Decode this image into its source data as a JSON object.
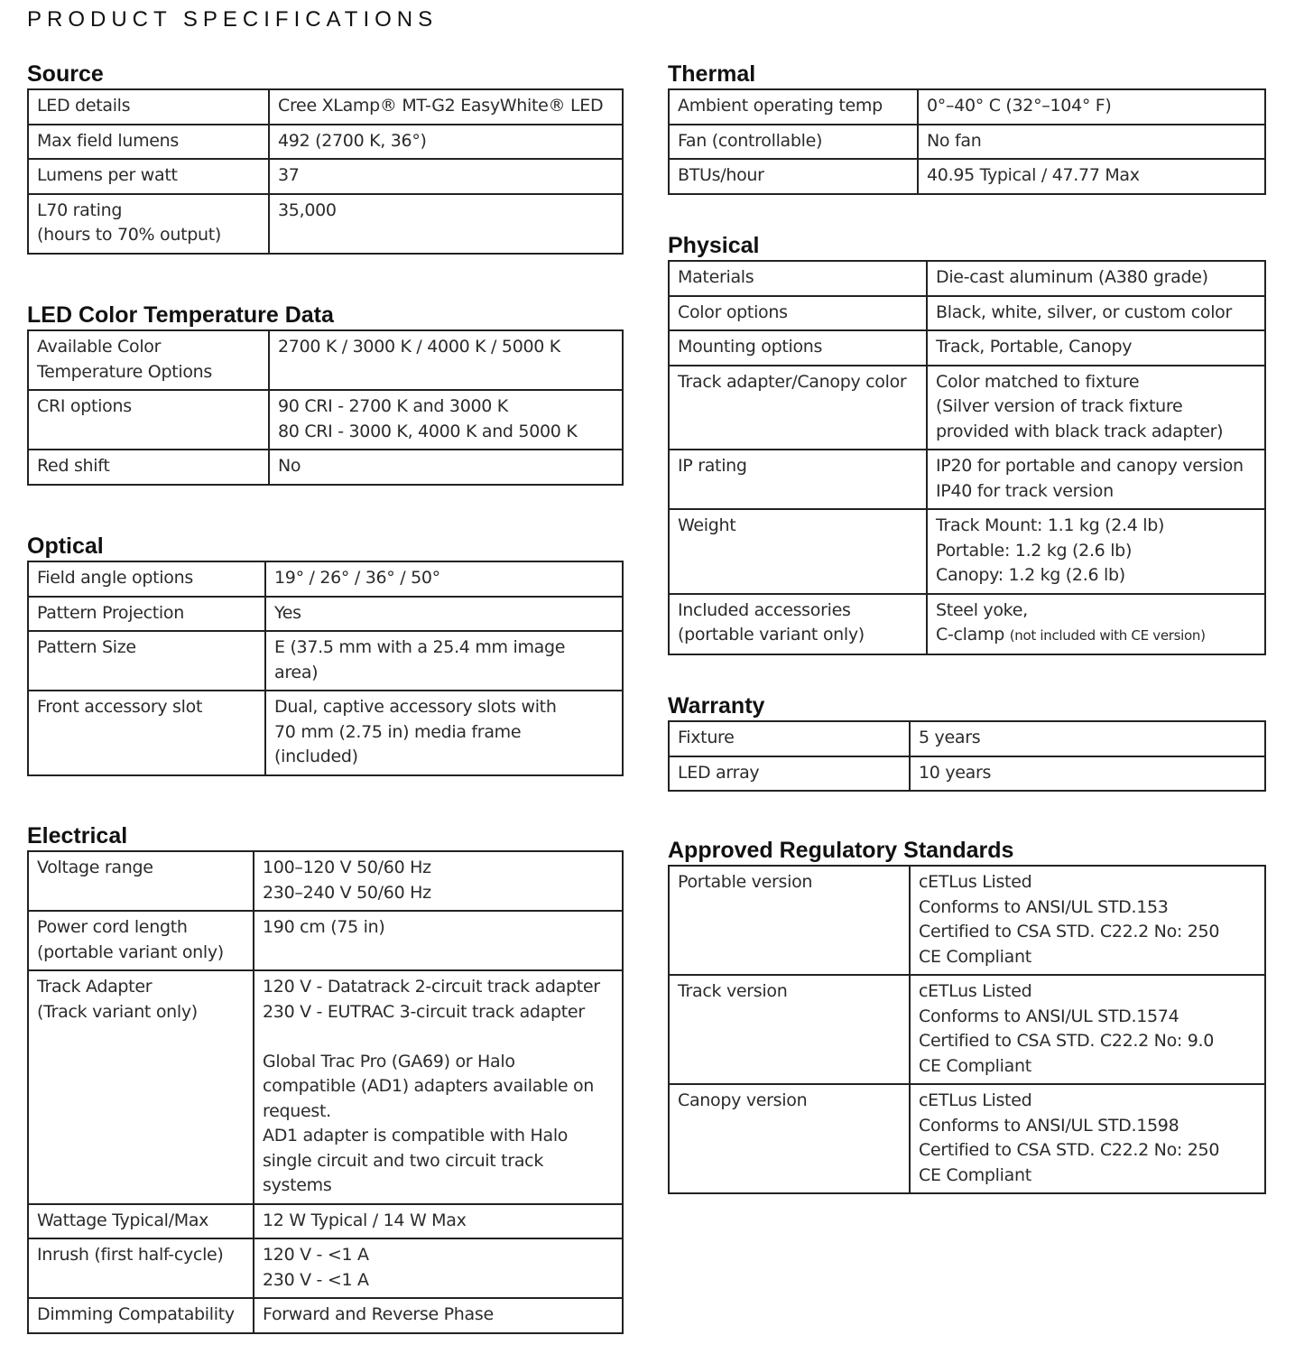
{
  "title": "PRODUCT SPECIFICATIONS",
  "sections": [
    {
      "id": "source",
      "heading": "Source",
      "rows": [
        {
          "label": [
            "LED details"
          ],
          "value": [
            "Cree XLamp® MT-G2 EasyWhite® LED"
          ]
        },
        {
          "label": [
            "Max field lumens"
          ],
          "value": [
            "492 (2700 K, 36°)"
          ]
        },
        {
          "label": [
            "Lumens per watt"
          ],
          "value": [
            "37"
          ]
        },
        {
          "label": [
            "L70 rating",
            "(hours to 70% output)"
          ],
          "value": [
            "35,000"
          ]
        }
      ]
    },
    {
      "id": "led-color-temperature",
      "heading": "LED Color Temperature Data",
      "rows": [
        {
          "label": [
            "Available Color",
            "Temperature Options"
          ],
          "value": [
            "2700 K / 3000 K / 4000 K / 5000 K"
          ]
        },
        {
          "label": [
            "CRI options"
          ],
          "value": [
            "90 CRI - 2700 K and 3000 K",
            "80 CRI - 3000 K, 4000 K and 5000 K"
          ]
        },
        {
          "label": [
            "Red shift"
          ],
          "value": [
            "No"
          ]
        }
      ]
    },
    {
      "id": "optical",
      "heading": "Optical",
      "rows": [
        {
          "label": [
            "Field angle options"
          ],
          "value": [
            "19° / 26° / 36° / 50°"
          ]
        },
        {
          "label": [
            "Pattern Projection"
          ],
          "value": [
            "Yes"
          ]
        },
        {
          "label": [
            "Pattern Size"
          ],
          "value": [
            "E (37.5 mm with a 25.4 mm image",
            "area)"
          ]
        },
        {
          "label": [
            "Front accessory slot"
          ],
          "value": [
            "Dual, captive accessory slots with",
            "70 mm (2.75 in) media frame",
            "(included)"
          ]
        }
      ]
    },
    {
      "id": "electrical",
      "heading": "Electrical",
      "rows": [
        {
          "label": [
            "Voltage range"
          ],
          "value": [
            "100–120 V 50/60 Hz",
            "230–240 V 50/60 Hz"
          ]
        },
        {
          "label": [
            "Power cord length",
            "(portable variant only)"
          ],
          "value": [
            "190 cm (75 in)"
          ]
        },
        {
          "label": [
            "Track Adapter",
            "(Track variant only)"
          ],
          "value": [
            "120 V - Datatrack 2-circuit track adapter",
            "230 V - EUTRAC 3-circuit track adapter",
            "",
            "Global Trac Pro (GA69) or Halo",
            "compatible (AD1) adapters available on",
            "request.",
            "AD1 adapter is compatible with Halo",
            "single circuit and two circuit track",
            "systems"
          ]
        },
        {
          "label": [
            "Wattage Typical/Max"
          ],
          "value": [
            "12 W Typical / 14 W Max"
          ]
        },
        {
          "label": [
            "Inrush (first half-cycle)"
          ],
          "value": [
            "120 V - <1 A",
            "230 V - <1 A"
          ]
        },
        {
          "label": [
            "Dimming Compatability"
          ],
          "value": [
            "Forward and Reverse Phase"
          ]
        }
      ]
    },
    {
      "id": "thermal",
      "heading": "Thermal",
      "rows": [
        {
          "label": [
            "Ambient operating temp"
          ],
          "value": [
            "0°–40° C (32°–104° F)"
          ]
        },
        {
          "label": [
            "Fan (controllable)"
          ],
          "value": [
            "No fan"
          ]
        },
        {
          "label": [
            "BTUs/hour"
          ],
          "value": [
            "40.95 Typical / 47.77 Max"
          ]
        }
      ]
    },
    {
      "id": "physical",
      "heading": "Physical",
      "rows": [
        {
          "label": [
            "Materials"
          ],
          "value": [
            "Die-cast aluminum (A380 grade)"
          ]
        },
        {
          "label": [
            "Color options"
          ],
          "value": [
            "Black, white, silver, or custom color"
          ]
        },
        {
          "label": [
            "Mounting options"
          ],
          "value": [
            "Track, Portable, Canopy"
          ]
        },
        {
          "label": [
            "Track adapter/Canopy color"
          ],
          "value": [
            "Color matched to fixture",
            "(Silver version of track fixture",
            "provided with black track adapter)"
          ]
        },
        {
          "label": [
            "IP rating"
          ],
          "value": [
            "IP20 for portable and canopy version",
            "IP40 for track version"
          ]
        },
        {
          "label": [
            "Weight"
          ],
          "value": [
            "Track Mount: 1.1 kg (2.4 lb)",
            "Portable: 1.2 kg (2.6 lb)",
            "Canopy: 1.2 kg (2.6 lb)"
          ]
        },
        {
          "label": [
            "Included accessories",
            "(portable variant only)"
          ],
          "value": [
            "Steel yoke,",
            "C-clamp"
          ],
          "value_note": "(not included with CE version)"
        }
      ]
    },
    {
      "id": "warranty",
      "heading": "Warranty",
      "rows": [
        {
          "label": [
            "Fixture"
          ],
          "value": [
            "5 years"
          ]
        },
        {
          "label": [
            "LED array"
          ],
          "value": [
            "10 years"
          ]
        }
      ]
    },
    {
      "id": "regulatory",
      "heading": "Approved Regulatory Standards",
      "rows": [
        {
          "label": [
            "Portable version"
          ],
          "value": [
            "cETLus Listed",
            "Conforms to ANSI/UL STD.153",
            "Certified to CSA STD. C22.2 No: 250",
            "CE Compliant"
          ]
        },
        {
          "label": [
            "Track version"
          ],
          "value": [
            "cETLus Listed",
            "Conforms to ANSI/UL STD.1574",
            "Certified to CSA STD. C22.2 No: 9.0",
            "CE Compliant"
          ]
        },
        {
          "label": [
            "Canopy version"
          ],
          "value": [
            "cETLus Listed",
            "Conforms to ANSI/UL STD.1598",
            "Certified to CSA STD. C22.2 No: 250",
            "CE Compliant"
          ]
        }
      ]
    }
  ]
}
